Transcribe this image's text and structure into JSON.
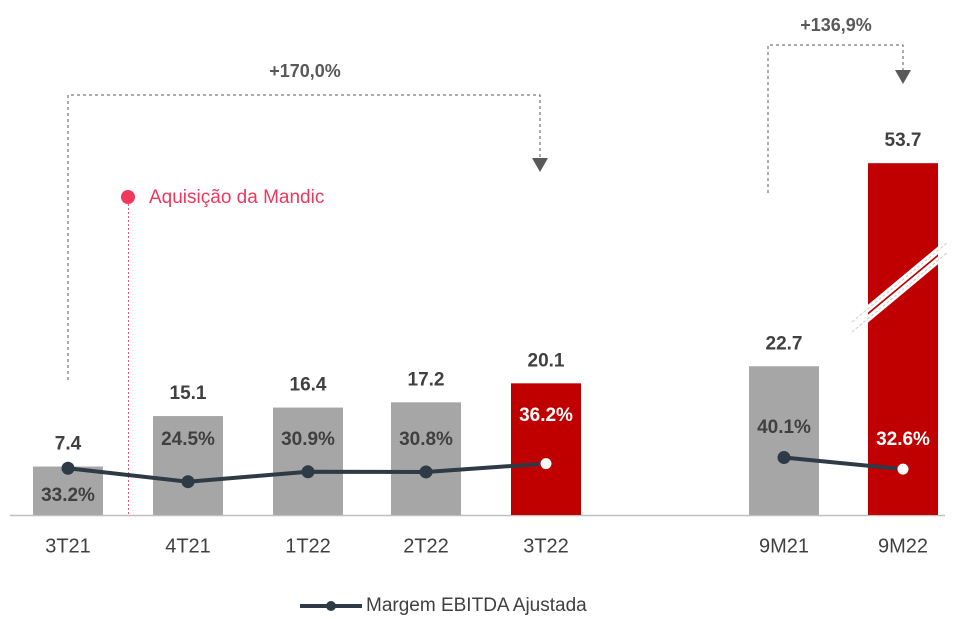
{
  "chart_data": {
    "type": "bar",
    "categories": [
      "3T21",
      "4T21",
      "1T22",
      "2T22",
      "3T22",
      "9M21",
      "9M22"
    ],
    "values": [
      7.4,
      15.1,
      16.4,
      17.2,
      20.1,
      22.7,
      53.7
    ],
    "colors": [
      "#a6a6a6",
      "#a6a6a6",
      "#a6a6a6",
      "#a6a6a6",
      "#c00000",
      "#a6a6a6",
      "#c00000"
    ],
    "ylim": [
      0,
      78
    ],
    "series": [
      {
        "name": "Margem EBITDA Ajustada",
        "type": "line",
        "axis": "y2",
        "color": "#2e3a45",
        "values": [
          33.2,
          24.5,
          30.9,
          30.8,
          36.2,
          40.1,
          32.6
        ],
        "value_labels": [
          "33.2%",
          "24.5%",
          "30.9%",
          "30.8%",
          "36.2%",
          "40.1%",
          "32.6%"
        ]
      }
    ],
    "y2lim": [
      3,
      333
    ],
    "annotations": [
      "+170,0%",
      "+136,9%",
      "Aquisição da Mandic"
    ],
    "legend": "bottom"
  }
}
